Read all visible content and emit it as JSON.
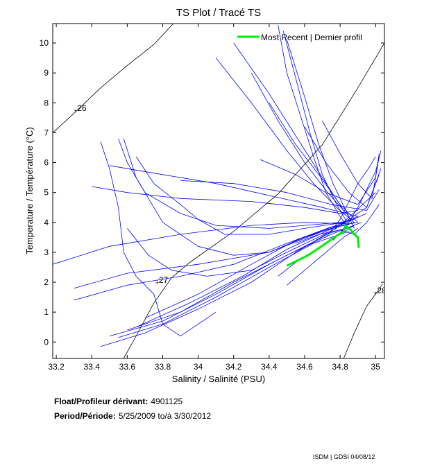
{
  "chart_data": {
    "type": "line",
    "title": "TS Plot / Tracé TS",
    "xlabel": "Salinity / Salinité (PSU)",
    "ylabel": "Temperature / Température (°C)",
    "xlim": [
      33.18,
      35.05
    ],
    "ylim": [
      -0.55,
      10.65
    ],
    "xticks": [
      33.2,
      33.4,
      33.6,
      33.8,
      34,
      34.2,
      34.4,
      34.6,
      34.8,
      35
    ],
    "xtick_labels": [
      "33.2",
      "33.4",
      "33.6",
      "33.8",
      "34",
      "34.2",
      "34.4",
      "34.6",
      "34.8",
      "35"
    ],
    "yticks": [
      0,
      1,
      2,
      3,
      4,
      5,
      6,
      7,
      8,
      9,
      10
    ],
    "ytick_labels": [
      "0",
      "1",
      "2",
      "3",
      "4",
      "5",
      "6",
      "7",
      "8",
      "9",
      "10"
    ],
    "grid": false,
    "legend": {
      "position": "top-right",
      "entries": [
        {
          "label": "Most Recent | Dernier profil",
          "color": "#00ee00"
        }
      ]
    },
    "isopycnals": [
      {
        "label": "26",
        "label_at": [
          33.31,
          7.75
        ],
        "points": [
          [
            33.18,
            7.0
          ],
          [
            33.3,
            7.65
          ],
          [
            33.45,
            8.5
          ],
          [
            33.6,
            9.25
          ],
          [
            33.75,
            9.95
          ],
          [
            33.86,
            10.65
          ]
        ]
      },
      {
        "label": "27",
        "label_at": [
          33.77,
          2.0
        ],
        "points": [
          [
            33.58,
            -0.55
          ],
          [
            33.65,
            0.2
          ],
          [
            33.75,
            1.3
          ],
          [
            33.85,
            2.15
          ],
          [
            33.95,
            2.65
          ],
          [
            34.2,
            3.7
          ],
          [
            34.45,
            4.95
          ],
          [
            34.7,
            6.6
          ],
          [
            34.9,
            8.5
          ],
          [
            35.05,
            10.0
          ]
        ]
      },
      {
        "label": "28",
        "label_at": [
          35.0,
          1.65
        ],
        "points": [
          [
            34.82,
            -0.55
          ],
          [
            34.88,
            0.3
          ],
          [
            34.95,
            1.2
          ],
          [
            35.0,
            1.6
          ],
          [
            35.04,
            1.95
          ]
        ]
      }
    ],
    "series": [
      {
        "name": "Profiles",
        "color": "#0000ff",
        "lines": [
          [
            [
              33.55,
              6.8
            ],
            [
              33.6,
              6.0
            ],
            [
              33.7,
              5.0
            ],
            [
              33.9,
              4.3
            ],
            [
              34.1,
              3.9
            ],
            [
              34.4,
              3.8
            ],
            [
              34.6,
              3.9
            ],
            [
              34.8,
              4.0
            ],
            [
              34.88,
              4.1
            ]
          ],
          [
            [
              33.58,
              6.8
            ],
            [
              33.65,
              5.5
            ],
            [
              33.8,
              4.0
            ],
            [
              34.0,
              3.2
            ],
            [
              34.2,
              2.9
            ],
            [
              34.4,
              3.0
            ],
            [
              34.6,
              3.5
            ],
            [
              34.78,
              3.9
            ],
            [
              34.9,
              4.2
            ]
          ],
          [
            [
              33.4,
              5.2
            ],
            [
              33.6,
              5.0
            ],
            [
              33.9,
              4.8
            ],
            [
              34.3,
              4.7
            ],
            [
              34.6,
              4.5
            ],
            [
              34.8,
              4.3
            ],
            [
              34.9,
              4.4
            ]
          ],
          [
            [
              33.18,
              2.6
            ],
            [
              33.5,
              3.2
            ],
            [
              33.9,
              3.6
            ],
            [
              34.3,
              3.9
            ],
            [
              34.6,
              4.0
            ],
            [
              34.85,
              3.95
            ]
          ],
          [
            [
              33.3,
              1.8
            ],
            [
              33.6,
              2.3
            ],
            [
              34.0,
              2.6
            ],
            [
              34.4,
              3.0
            ],
            [
              34.7,
              3.7
            ],
            [
              34.88,
              4.0
            ]
          ],
          [
            [
              33.3,
              1.4
            ],
            [
              33.6,
              1.9
            ],
            [
              33.9,
              2.2
            ],
            [
              34.2,
              2.6
            ],
            [
              34.5,
              3.3
            ],
            [
              34.75,
              3.85
            ],
            [
              34.9,
              4.0
            ]
          ],
          [
            [
              33.45,
              -0.15
            ],
            [
              33.7,
              0.3
            ],
            [
              34.0,
              1.1
            ],
            [
              34.3,
              2.0
            ],
            [
              34.55,
              3.0
            ],
            [
              34.72,
              3.6
            ],
            [
              34.88,
              3.9
            ]
          ],
          [
            [
              33.55,
              0.15
            ],
            [
              33.8,
              0.6
            ],
            [
              34.1,
              1.5
            ],
            [
              34.4,
              2.5
            ],
            [
              34.65,
              3.3
            ],
            [
              34.85,
              3.7
            ]
          ],
          [
            [
              33.6,
              0.4
            ],
            [
              33.9,
              1.0
            ],
            [
              34.2,
              2.0
            ],
            [
              34.5,
              2.9
            ],
            [
              34.75,
              3.6
            ],
            [
              34.92,
              4.0
            ]
          ],
          [
            [
              33.5,
              0.2
            ],
            [
              33.8,
              0.7
            ],
            [
              34.1,
              1.6
            ],
            [
              34.4,
              2.6
            ],
            [
              34.7,
              3.5
            ],
            [
              34.95,
              4.5
            ],
            [
              35.02,
              5.6
            ]
          ],
          [
            [
              33.65,
              0.5
            ],
            [
              33.95,
              1.3
            ],
            [
              34.25,
              2.2
            ],
            [
              34.5,
              3.1
            ],
            [
              34.72,
              3.7
            ],
            [
              34.95,
              4.3
            ]
          ],
          [
            [
              33.7,
              0.8
            ],
            [
              34.0,
              1.6
            ],
            [
              34.3,
              2.6
            ],
            [
              34.55,
              3.4
            ],
            [
              34.8,
              3.9
            ],
            [
              35.0,
              5.0
            ]
          ],
          [
            [
              33.45,
              6.7
            ],
            [
              33.5,
              5.8
            ],
            [
              33.55,
              4.5
            ],
            [
              33.58,
              3.0
            ],
            [
              33.65,
              2.2
            ],
            [
              33.75,
              1.6
            ],
            [
              33.8,
              0.6
            ],
            [
              33.9,
              0.2
            ],
            [
              34.1,
              1.0
            ]
          ],
          [
            [
              33.65,
              6.2
            ],
            [
              33.75,
              5.3
            ],
            [
              33.9,
              4.6
            ],
            [
              34.0,
              4.1
            ],
            [
              34.15,
              3.6
            ],
            [
              34.4,
              3.6
            ],
            [
              34.6,
              3.8
            ],
            [
              34.82,
              4.0
            ]
          ],
          [
            [
              33.6,
              3.8
            ],
            [
              33.72,
              2.9
            ],
            [
              33.85,
              2.4
            ],
            [
              34.05,
              2.2
            ],
            [
              34.3,
              2.4
            ],
            [
              34.5,
              3.0
            ],
            [
              34.78,
              3.8
            ]
          ],
          [
            [
              34.45,
              10.6
            ],
            [
              34.5,
              9.0
            ],
            [
              34.58,
              7.5
            ],
            [
              34.65,
              6.2
            ],
            [
              34.72,
              5.0
            ],
            [
              34.8,
              4.2
            ],
            [
              34.86,
              3.7
            ]
          ],
          [
            [
              34.48,
              10.4
            ],
            [
              34.56,
              8.6
            ],
            [
              34.63,
              7.0
            ],
            [
              34.7,
              5.6
            ],
            [
              34.78,
              4.6
            ],
            [
              34.85,
              3.9
            ]
          ],
          [
            [
              34.5,
              10.1
            ],
            [
              34.6,
              8.2
            ],
            [
              34.68,
              6.6
            ],
            [
              34.76,
              5.3
            ],
            [
              34.84,
              4.3
            ],
            [
              34.88,
              3.8
            ]
          ],
          [
            [
              34.4,
              8.0
            ],
            [
              34.55,
              6.6
            ],
            [
              34.68,
              5.6
            ],
            [
              34.8,
              4.6
            ],
            [
              34.9,
              4.0
            ]
          ],
          [
            [
              34.3,
              9.0
            ],
            [
              34.45,
              7.4
            ],
            [
              34.6,
              6.0
            ],
            [
              34.73,
              5.0
            ],
            [
              34.85,
              4.2
            ]
          ],
          [
            [
              34.1,
              9.5
            ],
            [
              34.3,
              8.0
            ],
            [
              34.5,
              6.4
            ],
            [
              34.65,
              5.3
            ],
            [
              34.78,
              4.5
            ],
            [
              34.88,
              4.0
            ]
          ],
          [
            [
              34.2,
              10.0
            ],
            [
              34.4,
              8.3
            ],
            [
              34.56,
              6.8
            ],
            [
              34.7,
              5.5
            ],
            [
              34.82,
              4.4
            ]
          ],
          [
            [
              34.35,
              6.1
            ],
            [
              34.55,
              5.6
            ],
            [
              34.72,
              5.0
            ],
            [
              34.9,
              4.6
            ],
            [
              35.0,
              5.5
            ],
            [
              35.02,
              6.3
            ]
          ],
          [
            [
              34.6,
              7.2
            ],
            [
              34.72,
              6.0
            ],
            [
              34.85,
              5.0
            ],
            [
              34.95,
              4.5
            ],
            [
              35.03,
              5.8
            ]
          ],
          [
            [
              34.7,
              7.4
            ],
            [
              34.8,
              6.3
            ],
            [
              34.9,
              5.3
            ],
            [
              34.98,
              4.8
            ],
            [
              35.02,
              6.2
            ]
          ],
          [
            [
              33.9,
              5.4
            ],
            [
              34.2,
              5.3
            ],
            [
              34.5,
              5.0
            ],
            [
              34.75,
              4.6
            ],
            [
              34.95,
              4.4
            ],
            [
              35.02,
              5.1
            ]
          ],
          [
            [
              33.5,
              5.9
            ],
            [
              33.8,
              5.6
            ],
            [
              34.1,
              5.3
            ],
            [
              34.4,
              4.9
            ],
            [
              34.7,
              4.5
            ],
            [
              34.9,
              4.2
            ]
          ],
          [
            [
              34.55,
              3.3
            ],
            [
              34.68,
              3.6
            ],
            [
              34.8,
              3.75
            ],
            [
              34.88,
              3.6
            ],
            [
              34.95,
              4.0
            ],
            [
              35.02,
              4.6
            ]
          ],
          [
            [
              34.5,
              1.9
            ],
            [
              34.62,
              2.5
            ],
            [
              34.72,
              3.0
            ],
            [
              34.82,
              3.5
            ],
            [
              34.9,
              3.8
            ]
          ],
          [
            [
              34.45,
              2.2
            ],
            [
              34.58,
              2.8
            ],
            [
              34.7,
              3.2
            ],
            [
              34.8,
              3.6
            ],
            [
              34.88,
              3.9
            ]
          ],
          [
            [
              34.72,
              3.5
            ],
            [
              34.8,
              4.1
            ],
            [
              34.85,
              4.7
            ],
            [
              34.9,
              5.3
            ],
            [
              34.96,
              5.8
            ],
            [
              35.0,
              6.2
            ]
          ],
          [
            [
              34.76,
              3.4
            ],
            [
              34.84,
              3.9
            ],
            [
              34.9,
              4.5
            ],
            [
              34.95,
              5.1
            ],
            [
              35.0,
              5.7
            ],
            [
              35.03,
              6.4
            ]
          ]
        ]
      },
      {
        "name": "Most Recent | Dernier profil",
        "color": "#00ee00",
        "lines": [
          [
            [
              34.5,
              2.55
            ],
            [
              34.62,
              2.9
            ],
            [
              34.72,
              3.3
            ],
            [
              34.78,
              3.55
            ],
            [
              34.82,
              3.7
            ],
            [
              34.83,
              3.9
            ],
            [
              34.86,
              3.75
            ],
            [
              34.88,
              3.6
            ],
            [
              34.9,
              3.5
            ],
            [
              34.905,
              3.15
            ]
          ]
        ]
      }
    ]
  },
  "metadata": {
    "float_label": "Float/Profileur dérivant:",
    "float_value": "4901125",
    "period_label": "Period/Période:",
    "period_value": "5/25/2009  to/à  3/30/2012"
  },
  "footer": "ISDM | GDSI 04/08/12"
}
